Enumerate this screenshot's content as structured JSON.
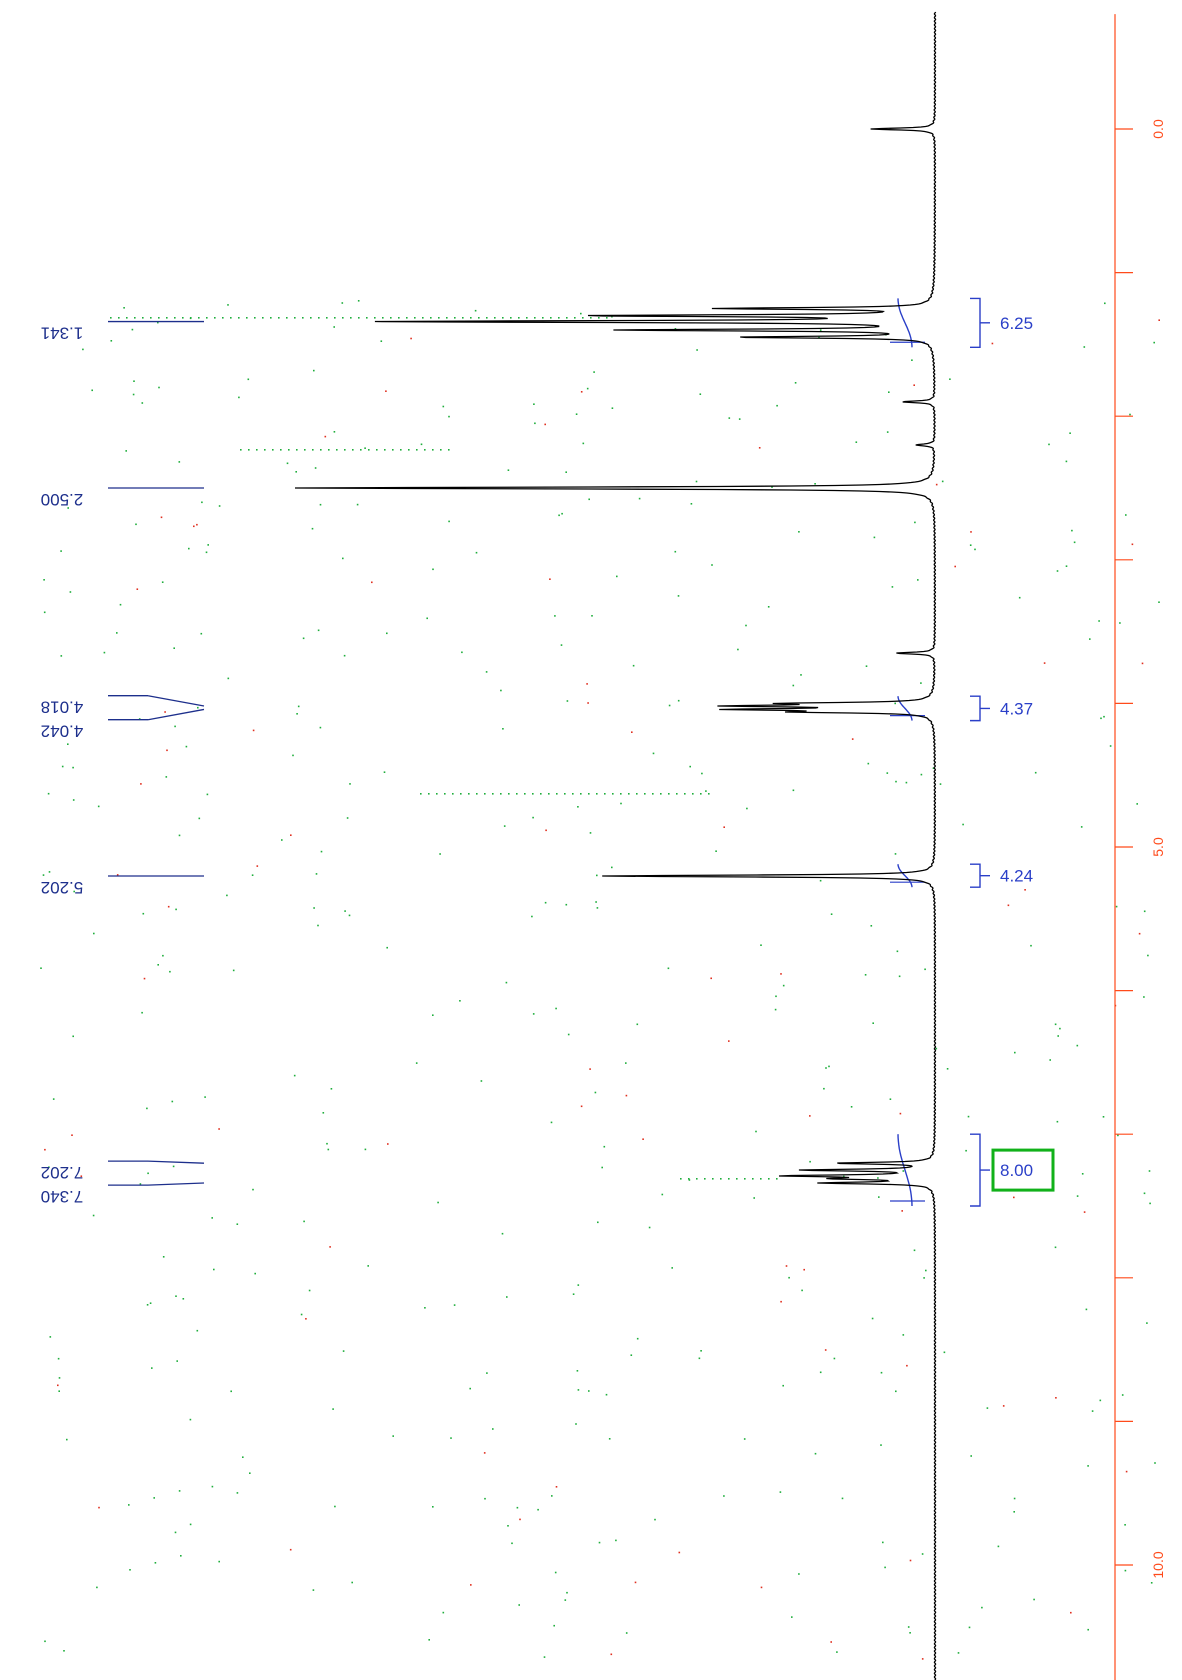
{
  "chart_data": {
    "type": "line",
    "orientation": "vertical-ppm-axis-right",
    "x_unit": "ppm",
    "x_range": [
      -0.8,
      11.5
    ],
    "axis": {
      "major_labels": [
        {
          "ppm": 0.0,
          "label": "0.0"
        },
        {
          "ppm": 5.0,
          "label": "5.0"
        },
        {
          "ppm": 10.0,
          "label": "10.0"
        }
      ],
      "tick_step": 1.0
    },
    "series": [
      {
        "peaks": [
          {
            "ppm": 0.0,
            "height": 0.1
          },
          {
            "ppm": 1.341,
            "height": 0.85
          },
          {
            "ppm": 1.4,
            "height": 0.48
          },
          {
            "ppm": 1.3,
            "height": 0.52
          },
          {
            "ppm": 1.45,
            "height": 0.3
          },
          {
            "ppm": 1.25,
            "height": 0.33
          },
          {
            "ppm": 1.9,
            "height": 0.05
          },
          {
            "ppm": 2.2,
            "height": 0.03
          },
          {
            "ppm": 2.5,
            "height": 1.0
          },
          {
            "ppm": 3.65,
            "height": 0.06
          },
          {
            "ppm": 4.018,
            "height": 0.28
          },
          {
            "ppm": 4.042,
            "height": 0.28
          },
          {
            "ppm": 4.0,
            "height": 0.2
          },
          {
            "ppm": 4.06,
            "height": 0.18
          },
          {
            "ppm": 5.202,
            "height": 0.52
          },
          {
            "ppm": 7.202,
            "height": 0.15
          },
          {
            "ppm": 7.25,
            "height": 0.2
          },
          {
            "ppm": 7.29,
            "height": 0.22
          },
          {
            "ppm": 7.34,
            "height": 0.17
          },
          {
            "ppm": 7.31,
            "height": 0.13
          }
        ]
      }
    ],
    "peak_labels": [
      {
        "ppm": 1.341,
        "label": "1.341"
      },
      {
        "ppm": 2.5,
        "label": "2.500"
      },
      {
        "ppm": 4.018,
        "label": "4.018"
      },
      {
        "ppm": 4.042,
        "label": "4.042"
      },
      {
        "ppm": 5.202,
        "label": "5.202"
      },
      {
        "ppm": 7.202,
        "label": "7.202"
      },
      {
        "ppm": 7.34,
        "label": "7.340"
      }
    ],
    "integrals": [
      {
        "from": 1.18,
        "to": 1.52,
        "label": "6.25",
        "highlight": false
      },
      {
        "from": 3.95,
        "to": 4.12,
        "label": "4.37",
        "highlight": false
      },
      {
        "from": 5.12,
        "to": 5.28,
        "label": "4.24",
        "highlight": false
      },
      {
        "from": 7.0,
        "to": 7.5,
        "label": "8.00",
        "highlight": true
      }
    ],
    "colors": {
      "spectrum": "#000000",
      "axis": "#ff4a1a",
      "peak_label": "#1d2f8c",
      "integral": "#2a3fc8",
      "highlight_box": "#11b11a",
      "dots_green": "#1fae3c",
      "dots_red": "#e03020"
    }
  }
}
